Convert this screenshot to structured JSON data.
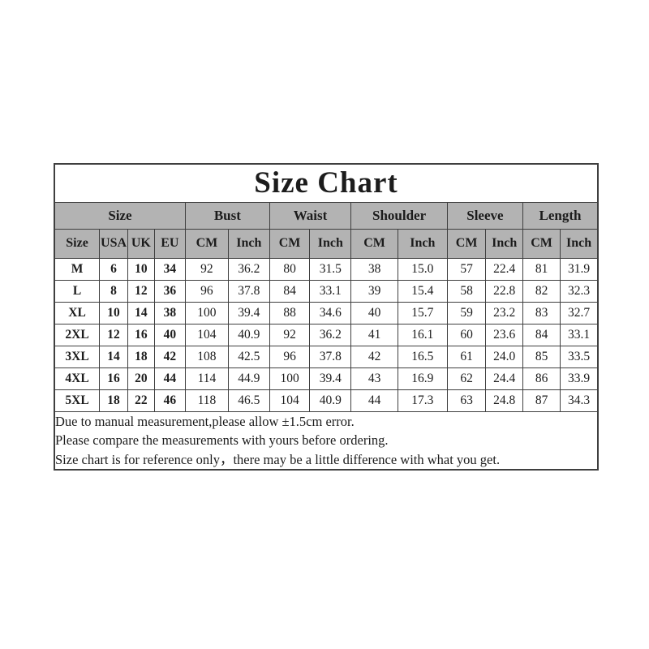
{
  "chart_data": {
    "type": "table",
    "title": "Size Chart",
    "column_groups": [
      {
        "label": "Size",
        "span": 4
      },
      {
        "label": "Bust",
        "span": 2
      },
      {
        "label": "Waist",
        "span": 2
      },
      {
        "label": "Shoulder",
        "span": 2
      },
      {
        "label": "Sleeve",
        "span": 2
      },
      {
        "label": "Length",
        "span": 2
      }
    ],
    "columns": [
      "Size",
      "USA",
      "UK",
      "EU",
      "CM",
      "Inch",
      "CM",
      "Inch",
      "CM",
      "Inch",
      "CM",
      "Inch",
      "CM",
      "Inch"
    ],
    "rows": [
      [
        "M",
        "6",
        "10",
        "34",
        "92",
        "36.2",
        "80",
        "31.5",
        "38",
        "15.0",
        "57",
        "22.4",
        "81",
        "31.9"
      ],
      [
        "L",
        "8",
        "12",
        "36",
        "96",
        "37.8",
        "84",
        "33.1",
        "39",
        "15.4",
        "58",
        "22.8",
        "82",
        "32.3"
      ],
      [
        "XL",
        "10",
        "14",
        "38",
        "100",
        "39.4",
        "88",
        "34.6",
        "40",
        "15.7",
        "59",
        "23.2",
        "83",
        "32.7"
      ],
      [
        "2XL",
        "12",
        "16",
        "40",
        "104",
        "40.9",
        "92",
        "36.2",
        "41",
        "16.1",
        "60",
        "23.6",
        "84",
        "33.1"
      ],
      [
        "3XL",
        "14",
        "18",
        "42",
        "108",
        "42.5",
        "96",
        "37.8",
        "42",
        "16.5",
        "61",
        "24.0",
        "85",
        "33.5"
      ],
      [
        "4XL",
        "16",
        "20",
        "44",
        "114",
        "44.9",
        "100",
        "39.4",
        "43",
        "16.9",
        "62",
        "24.4",
        "86",
        "33.9"
      ],
      [
        "5XL",
        "18",
        "22",
        "46",
        "118",
        "46.5",
        "104",
        "40.9",
        "44",
        "17.3",
        "63",
        "24.8",
        "87",
        "34.3"
      ]
    ],
    "notes": [
      "Due to manual measurement,please allow ±1.5cm error.",
      "Please compare the measurements with yours before ordering.",
      "Size chart is for reference only，there may be a little difference with what you get."
    ],
    "colors": {
      "header_bg": "#b3b3b3",
      "border": "#3f3f3f",
      "text": "#1c1c1c",
      "page_bg": "#ffffff"
    }
  }
}
